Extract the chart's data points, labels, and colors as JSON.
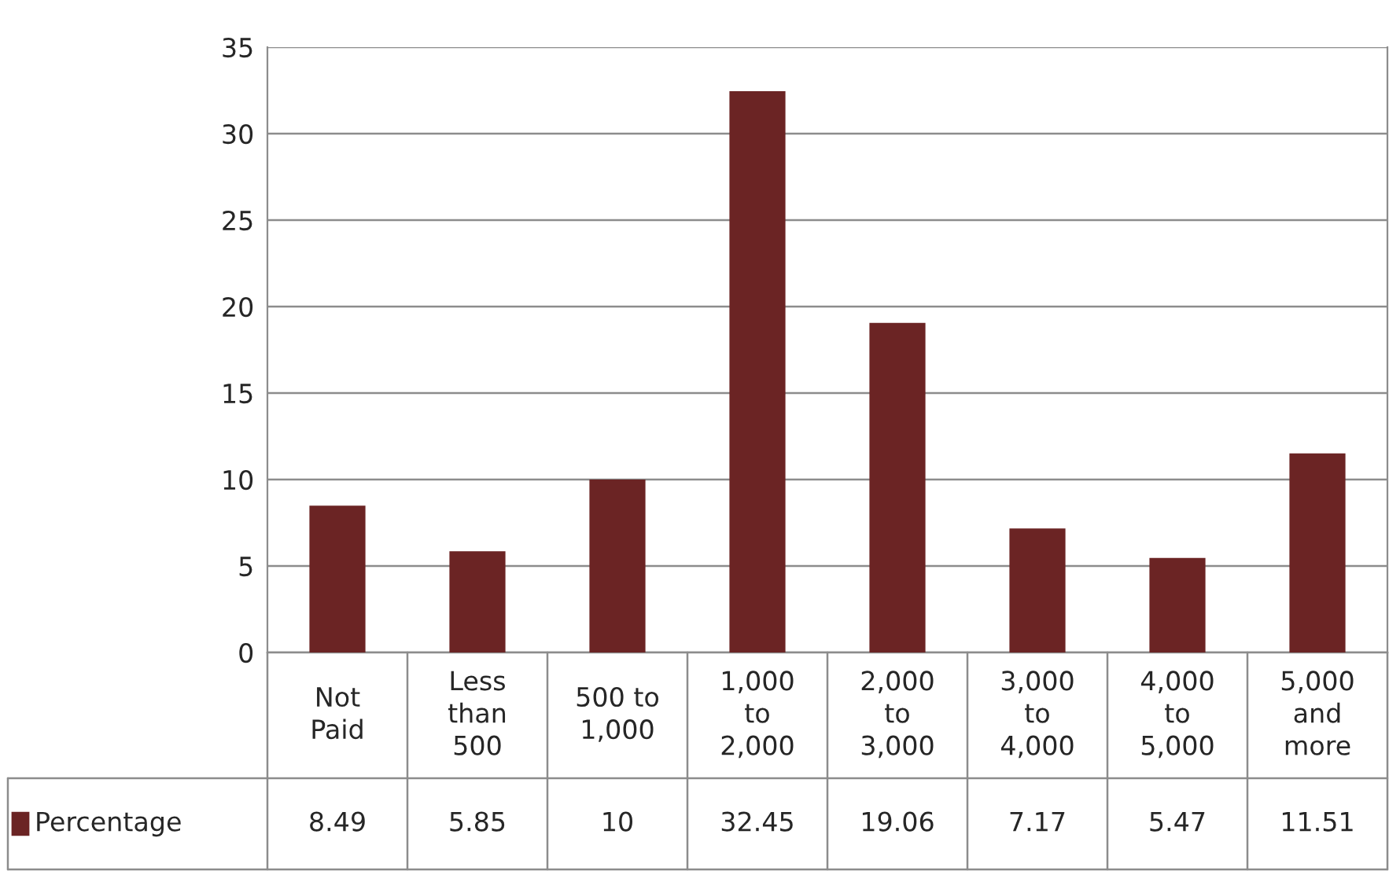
{
  "chart_data": {
    "type": "bar",
    "categories": [
      "Not Paid",
      "Less than 500",
      "500 to 1,000",
      "1,000 to 2,000",
      "2,000 to 3,000",
      "3,000 to 4,000",
      "4,000 to 5,000",
      "5,000 and more"
    ],
    "series": [
      {
        "name": "Percentage",
        "color": "#6b2424",
        "values": [
          8.49,
          5.85,
          10,
          32.45,
          19.06,
          7.17,
          5.47,
          11.51
        ]
      }
    ],
    "ylim": [
      0,
      35
    ],
    "yticks": [
      0,
      5,
      10,
      15,
      20,
      25,
      30,
      35
    ],
    "grid": "y",
    "data_labels": true,
    "legend": "bottom left"
  }
}
